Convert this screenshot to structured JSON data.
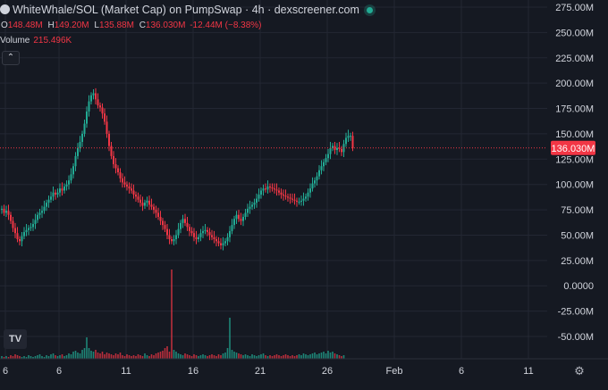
{
  "header": {
    "title": "WhiteWhale/SOL (Market Cap) on PumpSwap · 4h · dexscreener.com",
    "ohlc": [
      {
        "key": "O",
        "value": "148.48M"
      },
      {
        "key": "H",
        "value": "149.20M"
      },
      {
        "key": "L",
        "value": "135.88M"
      },
      {
        "key": "C",
        "value": "136.030M"
      },
      {
        "key": "",
        "value": "-12.44M (−8.38%)"
      }
    ],
    "volume_label": "Volume",
    "volume_value": "215.496K",
    "collapse_icon": "chevron-up-icon",
    "logo_text": "TV",
    "settings_icon": "gear-icon"
  },
  "colors": {
    "background": "#151922",
    "up": "#22ab94",
    "down": "#f23645",
    "grid": "#232733",
    "text": "#d1d4dc"
  },
  "chart_data": {
    "type": "candlestick",
    "title": "WhiteWhale/SOL (Market Cap) on PumpSwap · 4h · dexscreener.com",
    "price_unit": "M",
    "y_ticks": [
      "275.00M",
      "250.00M",
      "225.00M",
      "200.00M",
      "175.00M",
      "150.00M",
      "125.00M",
      "100.00M",
      "75.00M",
      "50.00M",
      "25.00M",
      "0.0000",
      "-25.00M",
      "-50.00M"
    ],
    "y_tick_values": [
      275,
      250,
      225,
      200,
      175,
      150,
      125,
      100,
      75,
      50,
      25,
      0,
      -25,
      -50
    ],
    "ylim": [
      -78,
      290
    ],
    "x_ticks": [
      {
        "label": "6",
        "index": 0
      },
      {
        "label": "6",
        "index": 24
      },
      {
        "label": "11",
        "index": 54
      },
      {
        "label": "16",
        "index": 84
      },
      {
        "label": "21",
        "index": 114
      },
      {
        "label": "26",
        "index": 144
      },
      {
        "label": "Feb",
        "index": 174
      },
      {
        "label": "6",
        "index": 204
      },
      {
        "label": "11",
        "index": 234
      }
    ],
    "last_price": 136.03,
    "last_price_label": "136.030M",
    "grid": true,
    "closes": [
      76,
      72,
      74,
      70,
      64,
      57,
      52,
      46,
      44,
      49,
      53,
      55,
      57,
      58,
      61,
      65,
      70,
      72,
      74,
      78,
      82,
      85,
      88,
      92,
      90,
      92,
      96,
      94,
      98,
      100,
      104,
      110,
      118,
      128,
      136,
      142,
      150,
      160,
      172,
      182,
      188,
      190,
      184,
      178,
      176,
      170,
      162,
      150,
      138,
      128,
      120,
      116,
      112,
      106,
      102,
      100,
      98,
      96,
      94,
      90,
      88,
      85,
      82,
      79,
      82,
      84,
      80,
      78,
      75,
      72,
      68,
      64,
      60,
      56,
      50,
      46,
      44,
      46,
      50,
      56,
      62,
      66,
      62,
      58,
      54,
      52,
      48,
      46,
      48,
      52,
      54,
      55,
      53,
      50,
      48,
      46,
      44,
      42,
      40,
      42,
      44,
      48,
      54,
      60,
      66,
      70,
      66,
      64,
      68,
      72,
      76,
      78,
      80,
      82,
      86,
      90,
      94,
      96,
      95,
      98,
      97,
      96,
      95,
      94,
      92,
      90,
      89,
      88,
      87,
      86,
      85,
      84,
      83,
      83,
      84,
      86,
      88,
      92,
      96,
      101,
      104,
      108,
      114,
      118,
      122,
      126,
      130,
      136,
      138,
      134,
      136,
      135,
      132,
      140,
      146,
      148,
      148,
      136
    ],
    "volumes": [
      3,
      2,
      3,
      2,
      4,
      3,
      5,
      4,
      3,
      2,
      3,
      2,
      4,
      3,
      2,
      3,
      4,
      5,
      3,
      2,
      4,
      3,
      5,
      6,
      4,
      3,
      4,
      5,
      3,
      4,
      6,
      5,
      8,
      9,
      7,
      6,
      10,
      12,
      24,
      12,
      9,
      8,
      10,
      7,
      6,
      8,
      5,
      7,
      6,
      5,
      4,
      6,
      5,
      7,
      4,
      3,
      5,
      4,
      3,
      4,
      3,
      5,
      4,
      3,
      6,
      4,
      3,
      5,
      4,
      6,
      7,
      8,
      9,
      12,
      14,
      8,
      100,
      10,
      8,
      6,
      5,
      4,
      6,
      5,
      4,
      3,
      5,
      4,
      3,
      4,
      5,
      4,
      3,
      4,
      5,
      4,
      3,
      5,
      4,
      6,
      7,
      12,
      46,
      10,
      8,
      7,
      6,
      5,
      4,
      5,
      4,
      3,
      5,
      4,
      3,
      4,
      5,
      6,
      4,
      3,
      4,
      3,
      4,
      5,
      4,
      3,
      4,
      5,
      4,
      3,
      4,
      3,
      4,
      5,
      4,
      6,
      5,
      4,
      5,
      6,
      7,
      5,
      6,
      7,
      8,
      6,
      9,
      7,
      8,
      6,
      5,
      4,
      3,
      4
    ]
  }
}
